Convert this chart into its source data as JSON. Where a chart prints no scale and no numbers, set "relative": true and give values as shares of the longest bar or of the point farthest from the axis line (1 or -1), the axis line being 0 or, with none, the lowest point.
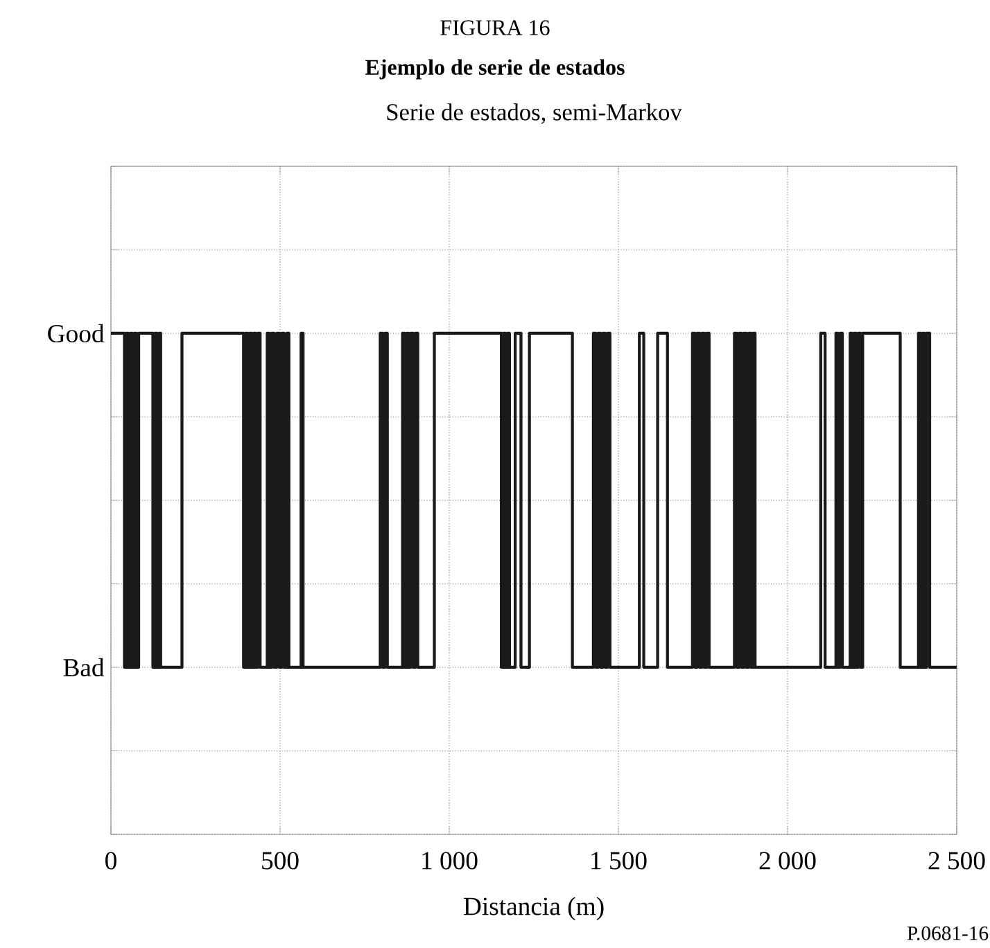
{
  "chart_data": {
    "type": "step",
    "title": "Ejemplo de serie de estados",
    "xlabel": "Distancia (m)",
    "annotations": [
      "FIGURA 16",
      "Serie de estados, semi-Markov",
      "P.0681-16",
      "Good",
      "Bad"
    ],
    "relative": true,
    "x": [
      0,
      40,
      46,
      51,
      57,
      63,
      69,
      75,
      82,
      124,
      130,
      136,
      142,
      147,
      210,
      392,
      398,
      404,
      410,
      416,
      422,
      428,
      434,
      441,
      462,
      468,
      475,
      482,
      490,
      498,
      505,
      512,
      520,
      526,
      562,
      568,
      796,
      803,
      810,
      817,
      862,
      868,
      874,
      880,
      886,
      893,
      900,
      907,
      956,
      1154,
      1160,
      1166,
      1172,
      1178,
      1195,
      1212,
      1237,
      1364,
      1426,
      1433,
      1440,
      1447,
      1454,
      1461,
      1468,
      1475,
      1562,
      1575,
      1616,
      1645,
      1719,
      1726,
      1733,
      1740,
      1747,
      1754,
      1761,
      1768,
      1843,
      1850,
      1857,
      1864,
      1871,
      1878,
      1885,
      1892,
      1898,
      1904,
      2098,
      2111,
      2143,
      2149,
      2155,
      2162,
      2185,
      2191,
      2197,
      2203,
      2209,
      2216,
      2222,
      2333,
      2387,
      2393,
      2399,
      2405,
      2411,
      2420,
      2500
    ],
    "values": [
      1,
      0,
      1,
      0,
      1,
      0,
      1,
      0,
      1,
      0,
      1,
      0,
      1,
      0,
      1,
      0,
      1,
      0,
      1,
      0,
      1,
      0,
      1,
      0,
      1,
      0,
      1,
      0,
      1,
      0,
      1,
      0,
      1,
      0,
      1,
      0,
      1,
      0,
      1,
      0,
      1,
      0,
      1,
      0,
      1,
      0,
      1,
      0,
      1,
      0,
      1,
      0,
      1,
      0,
      1,
      0,
      1,
      0,
      1,
      0,
      1,
      0,
      1,
      0,
      1,
      0,
      1,
      0,
      1,
      0,
      1,
      0,
      1,
      0,
      1,
      0,
      1,
      0,
      1,
      0,
      1,
      0,
      1,
      0,
      1,
      0,
      1,
      0,
      1,
      0,
      1,
      0,
      1,
      0,
      1,
      0,
      1,
      0,
      1,
      0,
      1,
      0,
      1,
      0,
      1,
      0,
      1,
      0,
      0
    ],
    "color": "#1a1a1a",
    "xlim": [
      0,
      2500
    ],
    "xticks": [
      0,
      500,
      {
        "value": 1000,
        "label": "1 000"
      },
      {
        "value": 1500,
        "label": "1 500"
      },
      {
        "value": 2000,
        "label": "2 000"
      },
      {
        "value": 2500,
        "label": "2 500"
      }
    ],
    "grid": true,
    "line_style": "solid"
  }
}
